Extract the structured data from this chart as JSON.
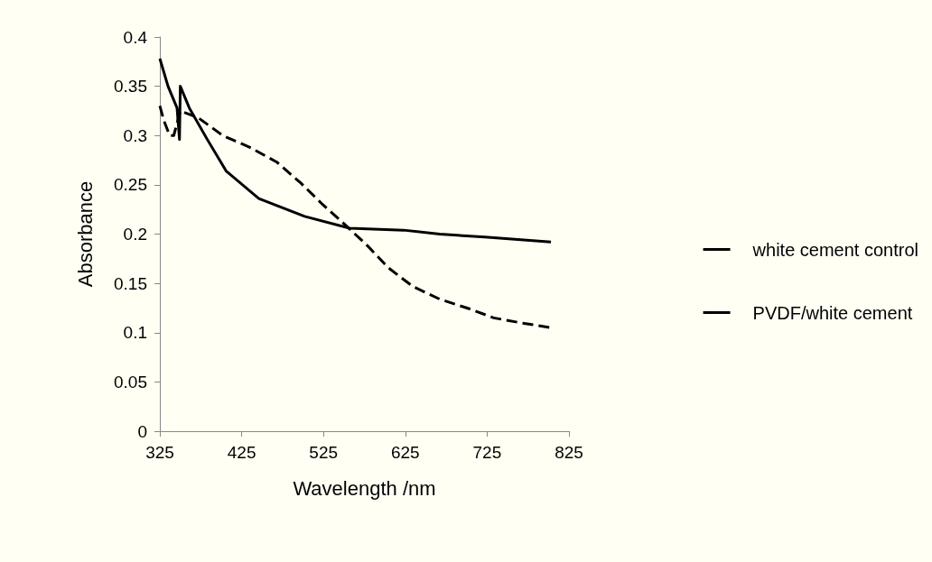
{
  "chart_data": {
    "type": "line",
    "xlabel": "Wavelength /nm",
    "ylabel": "Absorbance",
    "xlim": [
      325,
      825
    ],
    "xticks": [
      325,
      425,
      525,
      625,
      725,
      825
    ],
    "ylim": [
      0,
      0.4
    ],
    "yticks": [
      0,
      0.05,
      0.1,
      0.15,
      0.2,
      0.25,
      0.3,
      0.35,
      0.4
    ],
    "grid": false,
    "legend": "right",
    "marker": "none",
    "series": [
      {
        "name": "white cement control",
        "color": "#000000",
        "line_style": "solid",
        "x": [
          325,
          335,
          346,
          349,
          350,
          361,
          383,
          406,
          446,
          502,
          557,
          623,
          667,
          722,
          803
        ],
        "values": [
          0.378,
          0.35,
          0.328,
          0.296,
          0.35,
          0.328,
          0.296,
          0.264,
          0.236,
          0.218,
          0.206,
          0.204,
          0.2,
          0.197,
          0.192
        ]
      },
      {
        "name": "PVDF/white cement",
        "color": "#000000",
        "line_style": "dashed",
        "x": [
          325,
          330,
          337,
          342,
          350,
          372,
          402,
          435,
          468,
          497,
          524,
          552,
          579,
          604,
          634,
          667,
          704,
          733,
          766,
          803
        ],
        "values": [
          0.33,
          0.315,
          0.3,
          0.3,
          0.325,
          0.318,
          0.3,
          0.288,
          0.273,
          0.252,
          0.23,
          0.209,
          0.188,
          0.166,
          0.147,
          0.134,
          0.124,
          0.115,
          0.11,
          0.105
        ]
      }
    ]
  }
}
